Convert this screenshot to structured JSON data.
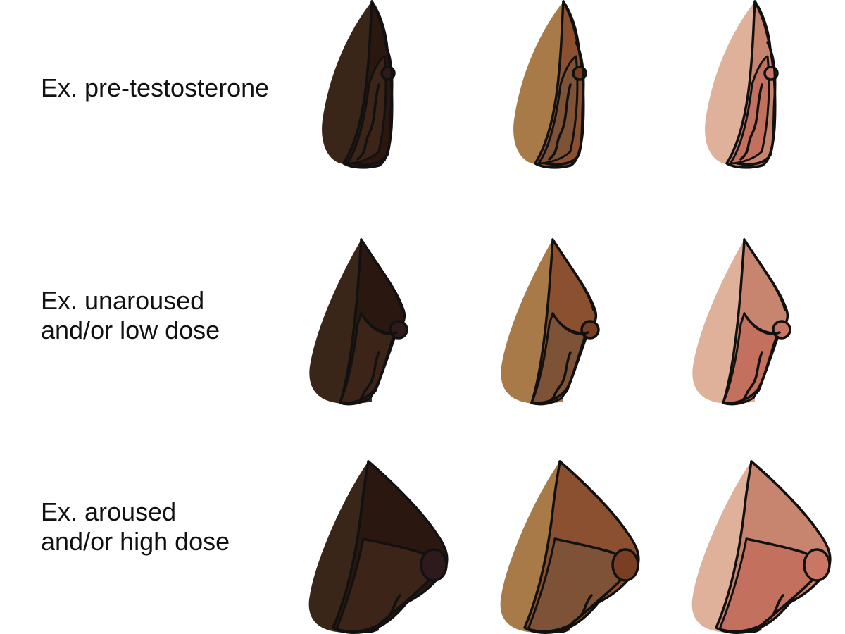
{
  "rows": [
    {
      "label": "Ex. pre-testosterone"
    },
    {
      "label": "Ex. unaroused\nand/or low dose"
    },
    {
      "label": "Ex. aroused\nand/or high dose"
    }
  ],
  "skin_tones": [
    {
      "name": "deep",
      "outer": "#3a2618",
      "inner": "#2a1810",
      "fold": "#3c2419",
      "tip": "#2c1a1c",
      "shade": "#24140f"
    },
    {
      "name": "medium",
      "outer": "#a87a48",
      "inner": "#8a5030",
      "fold": "#7e5236",
      "tip": "#7a3f22",
      "shade": "#6f4530"
    },
    {
      "name": "light",
      "outer": "#dfb09a",
      "inner": "#c78570",
      "fold": "#c4705f",
      "tip": "#c97664",
      "shade": "#b96a5c"
    }
  ],
  "outline_color": "#111111"
}
